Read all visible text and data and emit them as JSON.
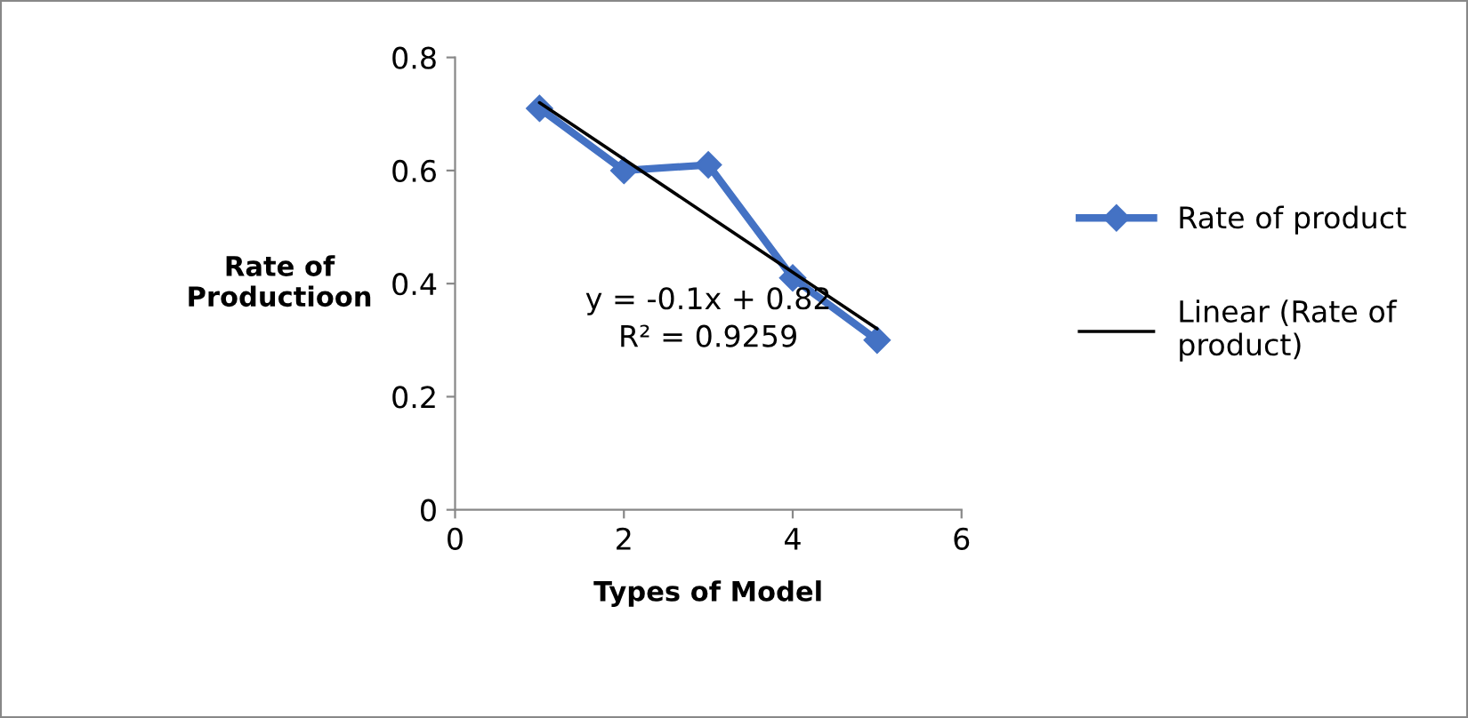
{
  "chart_data": {
    "type": "line",
    "xlabel": "Types of Model",
    "ylabel": "Rate of\nProductioon",
    "xlim": [
      0,
      6
    ],
    "xticks": [
      0,
      2,
      4,
      6
    ],
    "ylim": [
      0,
      0.8
    ],
    "yticks": [
      0,
      0.2,
      0.4,
      0.6,
      0.8
    ],
    "series": [
      {
        "name": "Rate of product",
        "color": "#4472c4",
        "x": [
          1,
          2,
          3,
          4,
          5
        ],
        "values": [
          0.71,
          0.6,
          0.61,
          0.41,
          0.3
        ],
        "marker": "diamond"
      },
      {
        "name": "Linear (Rate of product)",
        "color": "#000000",
        "type": "line",
        "x": [
          1,
          5
        ],
        "values": [
          0.72,
          0.32
        ],
        "marker": "none"
      }
    ],
    "annotations": [
      "y = -0.1x + 0.82\nR² = 0.9259"
    ],
    "grid": false,
    "legend": "right"
  }
}
